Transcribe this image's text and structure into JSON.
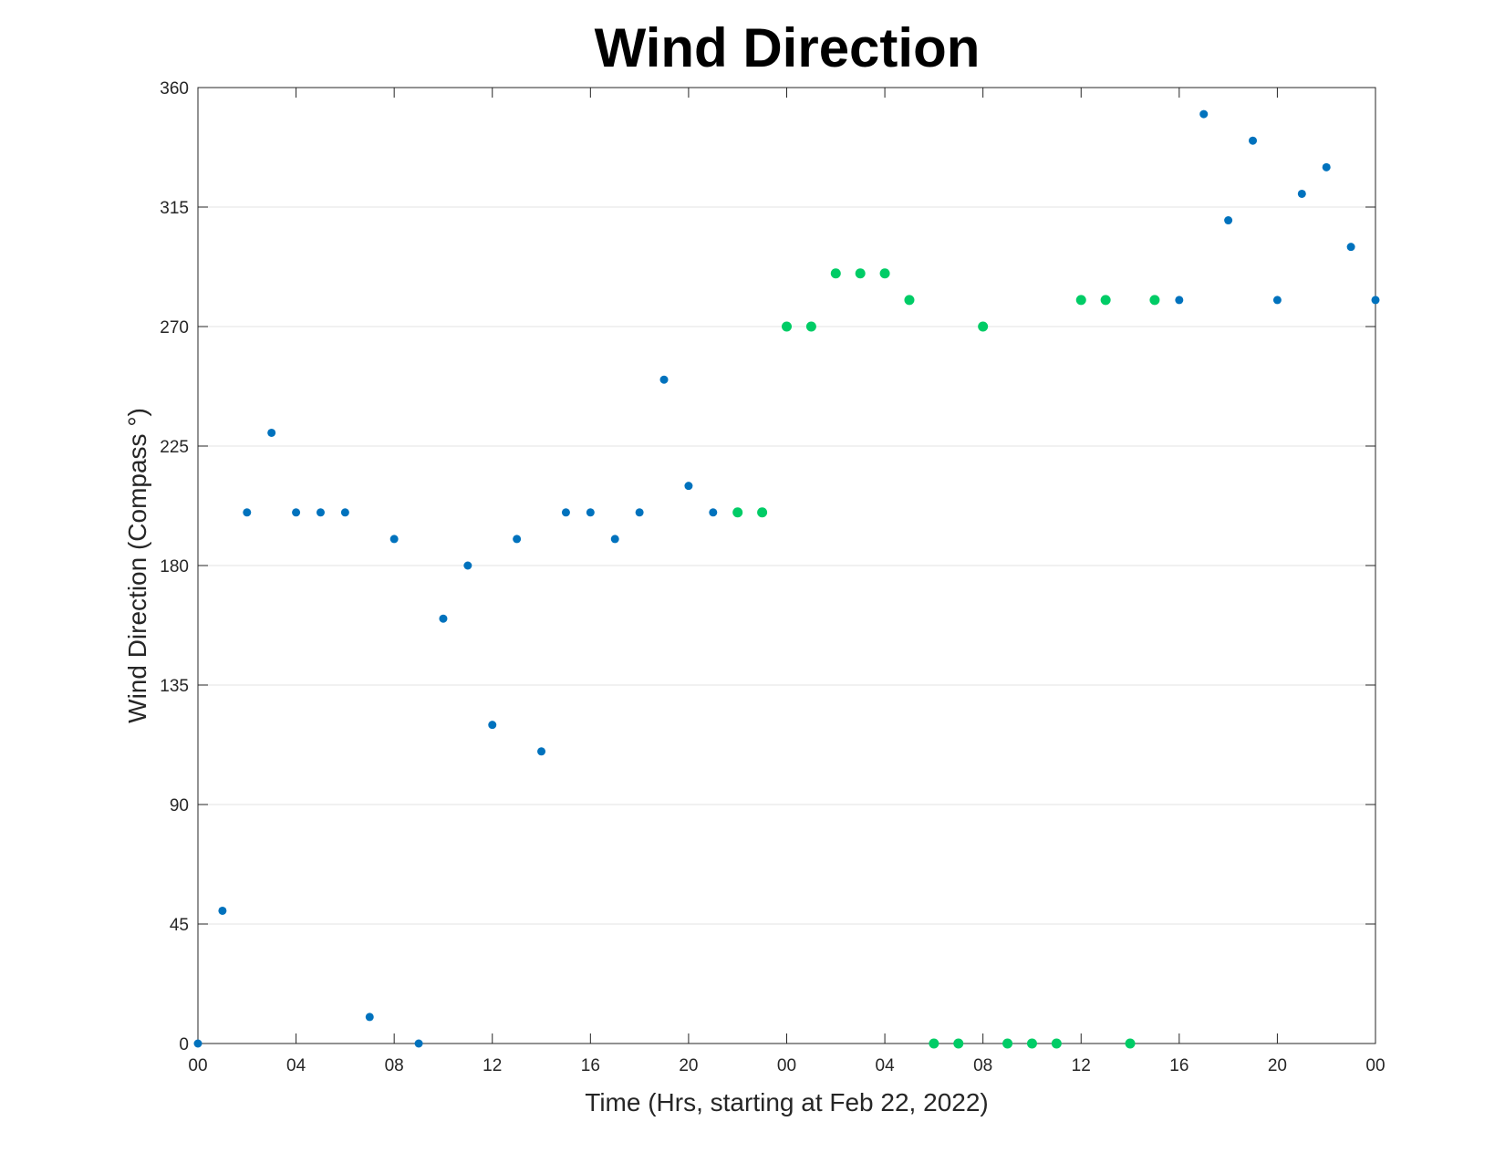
{
  "chart_data": {
    "type": "scatter",
    "title": "Wind Direction",
    "xlabel": "Time (Hrs, starting at Feb 22, 2022)",
    "ylabel": "Wind Direction (Compass °)",
    "xlim": [
      0,
      48
    ],
    "ylim": [
      0,
      360
    ],
    "x_ticks": [
      0,
      4,
      8,
      12,
      16,
      20,
      24,
      28,
      32,
      36,
      40,
      44,
      48
    ],
    "x_tick_labels": [
      "00",
      "04",
      "08",
      "12",
      "16",
      "20",
      "00",
      "04",
      "08",
      "12",
      "16",
      "20",
      "00"
    ],
    "y_ticks": [
      0,
      45,
      90,
      135,
      180,
      225,
      270,
      315,
      360
    ],
    "y_tick_labels": [
      "0",
      "45",
      "90",
      "135",
      "180",
      "225",
      "270",
      "315",
      "360"
    ],
    "grid": "horizontal",
    "colors": {
      "blue": "#0072bd",
      "green": "#00cc66"
    },
    "series": [
      {
        "color": "#0072bd",
        "x": [
          0,
          1,
          2,
          3,
          4,
          5,
          6,
          7,
          8,
          9,
          10,
          11,
          12,
          13,
          14,
          15,
          16,
          17,
          18,
          19,
          20,
          21,
          40,
          41,
          42,
          43,
          44,
          45,
          46,
          47,
          48
        ],
        "y": [
          0,
          50,
          200,
          230,
          200,
          200,
          200,
          10,
          190,
          0,
          160,
          180,
          120,
          190,
          110,
          200,
          200,
          190,
          200,
          250,
          210,
          200,
          280,
          350,
          310,
          340,
          280,
          320,
          330,
          300,
          280
        ]
      },
      {
        "color": "#00cc66",
        "x": [
          22,
          23,
          24,
          25,
          26,
          27,
          28,
          29,
          30,
          31,
          32,
          33,
          34,
          35,
          36,
          37,
          38,
          39
        ],
        "y": [
          200,
          200,
          270,
          270,
          290,
          290,
          290,
          280,
          0,
          0,
          270,
          0,
          0,
          0,
          280,
          280,
          0,
          280
        ]
      }
    ]
  }
}
